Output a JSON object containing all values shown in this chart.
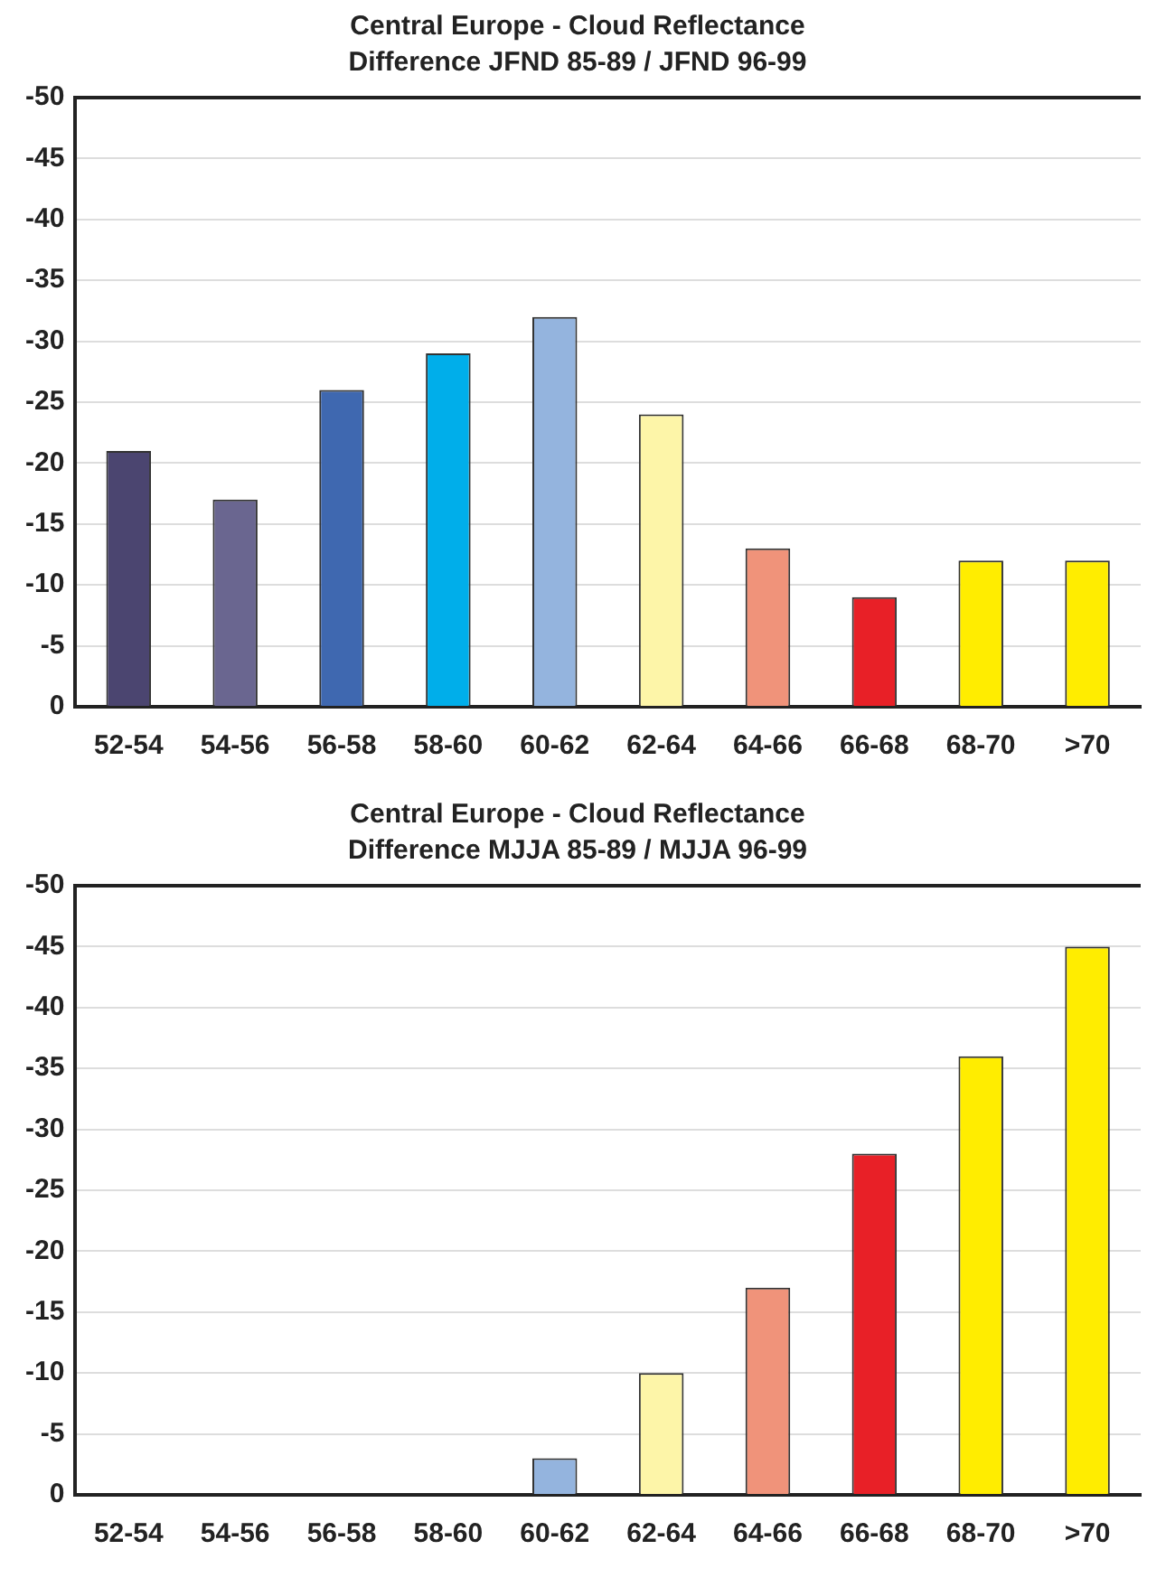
{
  "chart_data": [
    {
      "type": "bar",
      "title": "Central Europe - Cloud Reflectance",
      "subtitle": "Difference JFND 85-89 / JFND 96-99",
      "categories": [
        "52-54",
        "54-56",
        "56-58",
        "58-60",
        "60-62",
        "62-64",
        "64-66",
        "66-68",
        "68-70",
        ">70"
      ],
      "values": [
        -21,
        -17,
        -26,
        -29,
        -32,
        -24,
        -13,
        -9,
        -12,
        -12
      ],
      "colors": [
        "#4b4570",
        "#6a6690",
        "#3f68b0",
        "#00aeea",
        "#94b4de",
        "#fdf5a8",
        "#f0937a",
        "#e82027",
        "#ffed00",
        "#ffed00"
      ],
      "ylim": [
        0,
        -50
      ],
      "yticks": [
        0,
        -5,
        -10,
        -15,
        -20,
        -25,
        -30,
        -35,
        -40,
        -45,
        -50
      ],
      "grid": "y",
      "legend": false
    },
    {
      "type": "bar",
      "title": "Central Europe - Cloud Reflectance",
      "subtitle": "Difference MJJA 85-89 / MJJA 96-99",
      "categories": [
        "52-54",
        "54-56",
        "56-58",
        "58-60",
        "60-62",
        "62-64",
        "64-66",
        "66-68",
        "68-70",
        ">70"
      ],
      "values": [
        0,
        0,
        0,
        0,
        -3,
        -10,
        -17,
        -28,
        -36,
        -45
      ],
      "colors": [
        "#4b4570",
        "#6a6690",
        "#3f68b0",
        "#00aeea",
        "#94b4de",
        "#fdf5a8",
        "#f0937a",
        "#e82027",
        "#ffed00",
        "#ffed00"
      ],
      "ylim": [
        0,
        -50
      ],
      "yticks": [
        0,
        -5,
        -10,
        -15,
        -20,
        -25,
        -30,
        -35,
        -40,
        -45,
        -50
      ],
      "grid": "y",
      "legend": false
    }
  ]
}
